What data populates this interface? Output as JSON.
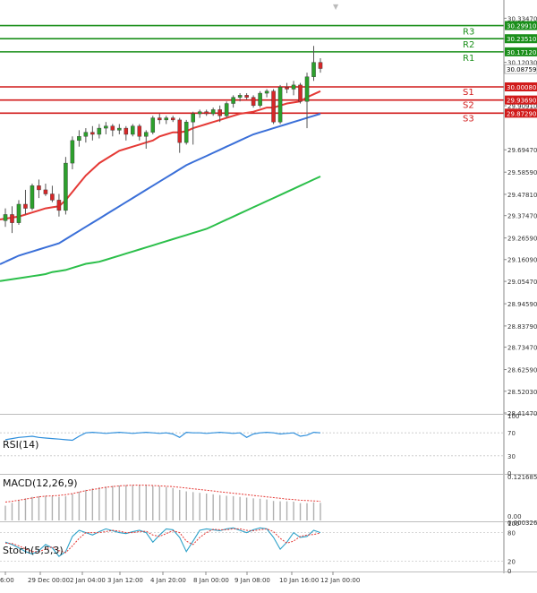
{
  "colors": {
    "bull": "#2ca02c",
    "bear": "#d62728",
    "wick": "#555555",
    "ma_fast": "#e53935",
    "ma_mid": "#3a6fd8",
    "ma_slow": "#2bbf4a",
    "resistance": "#1a8f1a",
    "support": "#d11a1a",
    "rsi": "#2f8fdc",
    "macd_hist": "#b0b0b0",
    "macd_signal": "#e53935",
    "stoch_main": "#2aa0c8",
    "stoch_signal": "#e53935"
  },
  "chart_data": [
    {
      "type": "candlestick",
      "instrument_precision": 5,
      "ylim": [
        28.4147,
        30.4147
      ],
      "y_ticks": [
        "30.33470",
        "30.23510",
        "30.12030",
        "29.90910",
        "29.69470",
        "29.58590",
        "29.47810",
        "29.37470",
        "29.26590",
        "29.16090",
        "29.05470",
        "28.94590",
        "28.83790",
        "28.73470",
        "28.62590",
        "28.52030",
        "28.41470"
      ],
      "current_price": "30.08759",
      "x_tick_labels": [
        "6:00",
        "29 Dec 00:00",
        "2 Jan 04:00",
        "3 Jan 12:00",
        "4 Jan 20:00",
        "8 Jan 00:00",
        "9 Jan 08:00",
        "10 Jan 16:00",
        "12 Jan 00:00"
      ],
      "levels": [
        {
          "name": "R3",
          "value": "30.29910",
          "kind": "resistance"
        },
        {
          "name": "R2",
          "value": "30.23510",
          "kind": "resistance"
        },
        {
          "name": "R1",
          "value": "30.17120",
          "kind": "resistance"
        },
        {
          "name": "S1",
          "value": "30.00080",
          "kind": "support"
        },
        {
          "name": "S2",
          "value": "29.93690",
          "kind": "support"
        },
        {
          "name": "S3",
          "value": "29.87290",
          "kind": "support"
        }
      ],
      "candles": [
        {
          "o": 29.35,
          "h": 29.41,
          "l": 29.32,
          "c": 29.38
        },
        {
          "o": 29.38,
          "h": 29.42,
          "l": 29.29,
          "c": 29.34
        },
        {
          "o": 29.34,
          "h": 29.45,
          "l": 29.33,
          "c": 29.43
        },
        {
          "o": 29.43,
          "h": 29.5,
          "l": 29.38,
          "c": 29.41
        },
        {
          "o": 29.41,
          "h": 29.53,
          "l": 29.4,
          "c": 29.52
        },
        {
          "o": 29.52,
          "h": 29.55,
          "l": 29.46,
          "c": 29.5
        },
        {
          "o": 29.5,
          "h": 29.53,
          "l": 29.47,
          "c": 29.48
        },
        {
          "o": 29.48,
          "h": 29.52,
          "l": 29.44,
          "c": 29.45
        },
        {
          "o": 29.45,
          "h": 29.48,
          "l": 29.37,
          "c": 29.4
        },
        {
          "o": 29.4,
          "h": 29.66,
          "l": 29.38,
          "c": 29.63
        },
        {
          "o": 29.63,
          "h": 29.76,
          "l": 29.6,
          "c": 29.74
        },
        {
          "o": 29.74,
          "h": 29.79,
          "l": 29.71,
          "c": 29.76
        },
        {
          "o": 29.76,
          "h": 29.8,
          "l": 29.73,
          "c": 29.78
        },
        {
          "o": 29.78,
          "h": 29.81,
          "l": 29.74,
          "c": 29.77
        },
        {
          "o": 29.77,
          "h": 29.82,
          "l": 29.75,
          "c": 29.8
        },
        {
          "o": 29.8,
          "h": 29.83,
          "l": 29.77,
          "c": 29.81
        },
        {
          "o": 29.81,
          "h": 29.82,
          "l": 29.76,
          "c": 29.79
        },
        {
          "o": 29.79,
          "h": 29.82,
          "l": 29.77,
          "c": 29.8
        },
        {
          "o": 29.8,
          "h": 29.81,
          "l": 29.74,
          "c": 29.77
        },
        {
          "o": 29.77,
          "h": 29.82,
          "l": 29.76,
          "c": 29.81
        },
        {
          "o": 29.81,
          "h": 29.82,
          "l": 29.74,
          "c": 29.76
        },
        {
          "o": 29.76,
          "h": 29.79,
          "l": 29.7,
          "c": 29.78
        },
        {
          "o": 29.78,
          "h": 29.86,
          "l": 29.77,
          "c": 29.85
        },
        {
          "o": 29.85,
          "h": 29.87,
          "l": 29.82,
          "c": 29.84
        },
        {
          "o": 29.84,
          "h": 29.86,
          "l": 29.82,
          "c": 29.85
        },
        {
          "o": 29.85,
          "h": 29.86,
          "l": 29.83,
          "c": 29.84
        },
        {
          "o": 29.84,
          "h": 29.85,
          "l": 29.68,
          "c": 29.73
        },
        {
          "o": 29.73,
          "h": 29.84,
          "l": 29.72,
          "c": 29.83
        },
        {
          "o": 29.83,
          "h": 29.88,
          "l": 29.72,
          "c": 29.87
        },
        {
          "o": 29.87,
          "h": 29.89,
          "l": 29.85,
          "c": 29.88
        },
        {
          "o": 29.88,
          "h": 29.89,
          "l": 29.86,
          "c": 29.87
        },
        {
          "o": 29.87,
          "h": 29.9,
          "l": 29.86,
          "c": 29.89
        },
        {
          "o": 29.89,
          "h": 29.91,
          "l": 29.83,
          "c": 29.86
        },
        {
          "o": 29.86,
          "h": 29.93,
          "l": 29.85,
          "c": 29.92
        },
        {
          "o": 29.92,
          "h": 29.96,
          "l": 29.9,
          "c": 29.95
        },
        {
          "o": 29.95,
          "h": 29.97,
          "l": 29.93,
          "c": 29.96
        },
        {
          "o": 29.96,
          "h": 29.97,
          "l": 29.94,
          "c": 29.95
        },
        {
          "o": 29.95,
          "h": 29.96,
          "l": 29.9,
          "c": 29.91
        },
        {
          "o": 29.91,
          "h": 29.98,
          "l": 29.9,
          "c": 29.97
        },
        {
          "o": 29.97,
          "h": 29.99,
          "l": 29.95,
          "c": 29.98
        },
        {
          "o": 29.98,
          "h": 29.99,
          "l": 29.82,
          "c": 29.83
        },
        {
          "o": 29.83,
          "h": 30.01,
          "l": 29.82,
          "c": 30.0
        },
        {
          "o": 30.0,
          "h": 30.02,
          "l": 29.97,
          "c": 29.99
        },
        {
          "o": 29.99,
          "h": 30.03,
          "l": 29.96,
          "c": 30.01
        },
        {
          "o": 30.01,
          "h": 30.02,
          "l": 29.92,
          "c": 29.93
        },
        {
          "o": 29.93,
          "h": 30.07,
          "l": 29.8,
          "c": 30.05
        },
        {
          "o": 30.05,
          "h": 30.2,
          "l": 30.03,
          "c": 30.12
        },
        {
          "o": 30.12,
          "h": 30.14,
          "l": 30.07,
          "c": 30.09
        }
      ],
      "moving_averages": [
        {
          "color_key": "ma_fast",
          "values": [
            29.36,
            29.365,
            29.37,
            29.38,
            29.39,
            29.4,
            29.41,
            29.415,
            29.42,
            29.45,
            29.49,
            29.53,
            29.57,
            29.6,
            29.63,
            29.65,
            29.67,
            29.69,
            29.7,
            29.71,
            29.72,
            29.73,
            29.74,
            29.76,
            29.77,
            29.78,
            29.78,
            29.785,
            29.8,
            29.81,
            29.82,
            29.83,
            29.84,
            29.85,
            29.86,
            29.87,
            29.875,
            29.88,
            29.89,
            29.9,
            29.9,
            29.91,
            29.92,
            29.925,
            29.93,
            29.95,
            29.965,
            29.98
          ]
        },
        {
          "color_key": "ma_mid",
          "values": [
            29.15,
            29.165,
            29.18,
            29.19,
            29.2,
            29.21,
            29.22,
            29.23,
            29.24,
            29.26,
            29.28,
            29.3,
            29.32,
            29.34,
            29.36,
            29.38,
            29.4,
            29.42,
            29.44,
            29.46,
            29.48,
            29.5,
            29.52,
            29.54,
            29.56,
            29.58,
            29.6,
            29.62,
            29.635,
            29.65,
            29.665,
            29.68,
            29.695,
            29.71,
            29.725,
            29.74,
            29.755,
            29.77,
            29.78,
            29.79,
            29.8,
            29.81,
            29.82,
            29.83,
            29.84,
            29.85,
            29.86,
            29.87
          ]
        },
        {
          "color_key": "ma_slow",
          "values": [
            29.06,
            29.065,
            29.07,
            29.075,
            29.08,
            29.085,
            29.09,
            29.1,
            29.105,
            29.11,
            29.12,
            29.13,
            29.14,
            29.145,
            29.15,
            29.16,
            29.17,
            29.18,
            29.19,
            29.2,
            29.21,
            29.22,
            29.23,
            29.24,
            29.25,
            29.26,
            29.27,
            29.28,
            29.29,
            29.3,
            29.31,
            29.325,
            29.34,
            29.355,
            29.37,
            29.385,
            29.4,
            29.415,
            29.43,
            29.445,
            29.46,
            29.475,
            29.49,
            29.505,
            29.52,
            29.535,
            29.55,
            29.565
          ]
        }
      ]
    },
    {
      "type": "line",
      "indicator": "RSI(14)",
      "ylim": [
        0,
        100
      ],
      "y_ticks": [
        "100",
        "70",
        "30",
        "0"
      ],
      "reference_levels": [
        70,
        30
      ],
      "values": [
        58,
        60,
        62,
        63,
        64,
        62,
        61,
        60,
        59,
        58,
        57,
        64,
        70,
        71,
        70,
        69,
        70,
        71,
        70,
        69,
        70,
        71,
        70,
        69,
        70,
        68,
        62,
        71,
        70,
        70,
        69,
        70,
        71,
        70,
        69,
        70,
        62,
        68,
        70,
        71,
        70,
        68,
        69,
        70,
        64,
        66,
        71,
        70
      ]
    },
    {
      "type": "bar",
      "indicator": "MACD(12,26,9)",
      "ylim": [
        0,
        0.121685
      ],
      "y_ticks": [
        "0.121685",
        "0.00"
      ],
      "histogram": [
        0.04,
        0.048,
        0.055,
        0.06,
        0.064,
        0.066,
        0.067,
        0.066,
        0.064,
        0.066,
        0.072,
        0.078,
        0.083,
        0.087,
        0.09,
        0.092,
        0.094,
        0.095,
        0.096,
        0.096,
        0.096,
        0.095,
        0.094,
        0.093,
        0.091,
        0.088,
        0.083,
        0.079,
        0.077,
        0.075,
        0.073,
        0.071,
        0.069,
        0.067,
        0.066,
        0.064,
        0.062,
        0.06,
        0.059,
        0.057,
        0.053,
        0.052,
        0.052,
        0.051,
        0.047,
        0.047,
        0.049,
        0.048
      ],
      "signal": [
        0.05,
        0.052,
        0.055,
        0.058,
        0.061,
        0.064,
        0.066,
        0.067,
        0.068,
        0.07,
        0.073,
        0.077,
        0.081,
        0.084,
        0.087,
        0.09,
        0.092,
        0.094,
        0.095,
        0.096,
        0.096,
        0.096,
        0.095,
        0.094,
        0.093,
        0.092,
        0.09,
        0.088,
        0.086,
        0.084,
        0.082,
        0.08,
        0.078,
        0.076,
        0.074,
        0.072,
        0.07,
        0.068,
        0.066,
        0.064,
        0.062,
        0.06,
        0.058,
        0.057,
        0.055,
        0.054,
        0.053,
        0.052
      ]
    },
    {
      "type": "line",
      "indicator": "Stoch(5,5,3)",
      "ylim": [
        0,
        100
      ],
      "y_ticks": [
        "100",
        "80",
        "20",
        "0"
      ],
      "top_label": "0.000326",
      "main": [
        60,
        55,
        48,
        40,
        35,
        42,
        55,
        48,
        30,
        40,
        72,
        85,
        80,
        75,
        82,
        88,
        84,
        80,
        78,
        82,
        85,
        80,
        60,
        75,
        88,
        86,
        70,
        40,
        62,
        85,
        88,
        86,
        84,
        88,
        90,
        85,
        80,
        86,
        90,
        88,
        70,
        45,
        60,
        80,
        70,
        72,
        85,
        80
      ],
      "signal": [
        58,
        57,
        52,
        46,
        40,
        40,
        45,
        50,
        42,
        38,
        52,
        68,
        80,
        80,
        80,
        82,
        85,
        83,
        80,
        80,
        82,
        83,
        75,
        72,
        78,
        84,
        80,
        62,
        55,
        70,
        80,
        87,
        86,
        86,
        88,
        88,
        85,
        84,
        86,
        88,
        82,
        68,
        58,
        62,
        72,
        75,
        76,
        79
      ]
    }
  ]
}
